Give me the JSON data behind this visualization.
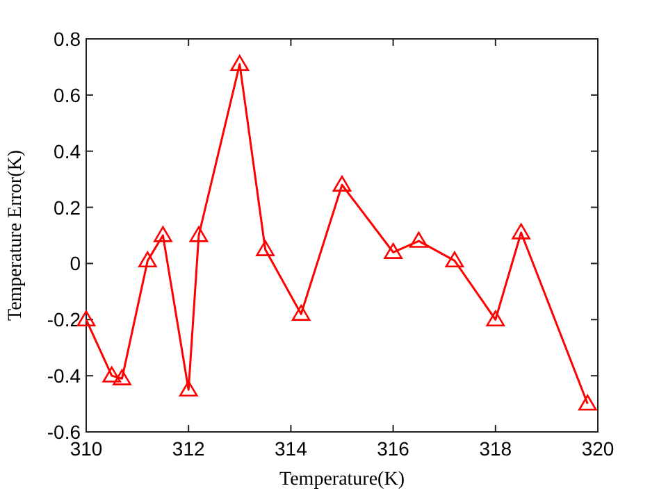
{
  "chart_data": {
    "type": "line",
    "xlabel": "Temperature(K)",
    "ylabel": "Temperature Error(K)",
    "x": [
      310,
      310.5,
      310.7,
      311.2,
      311.5,
      312,
      312.2,
      313,
      313.5,
      314.2,
      315,
      316,
      316.5,
      317.2,
      318,
      318.5,
      319.8
    ],
    "series": [
      {
        "color": "#ff0000",
        "values": [
          -0.2,
          -0.4,
          -0.41,
          0.01,
          0.1,
          -0.45,
          0.1,
          0.71,
          0.05,
          -0.18,
          0.28,
          0.04,
          0.08,
          0.01,
          -0.2,
          0.11,
          -0.5
        ]
      }
    ],
    "xlim": [
      310,
      320
    ],
    "xticks": [
      310,
      312,
      314,
      316,
      318,
      320
    ],
    "ylim": [
      -0.6,
      0.8
    ],
    "yticks": [
      -0.6,
      -0.4,
      -0.2,
      0,
      0.2,
      0.4,
      0.6,
      0.8
    ],
    "marker": "triangle",
    "line_style": "solid"
  }
}
